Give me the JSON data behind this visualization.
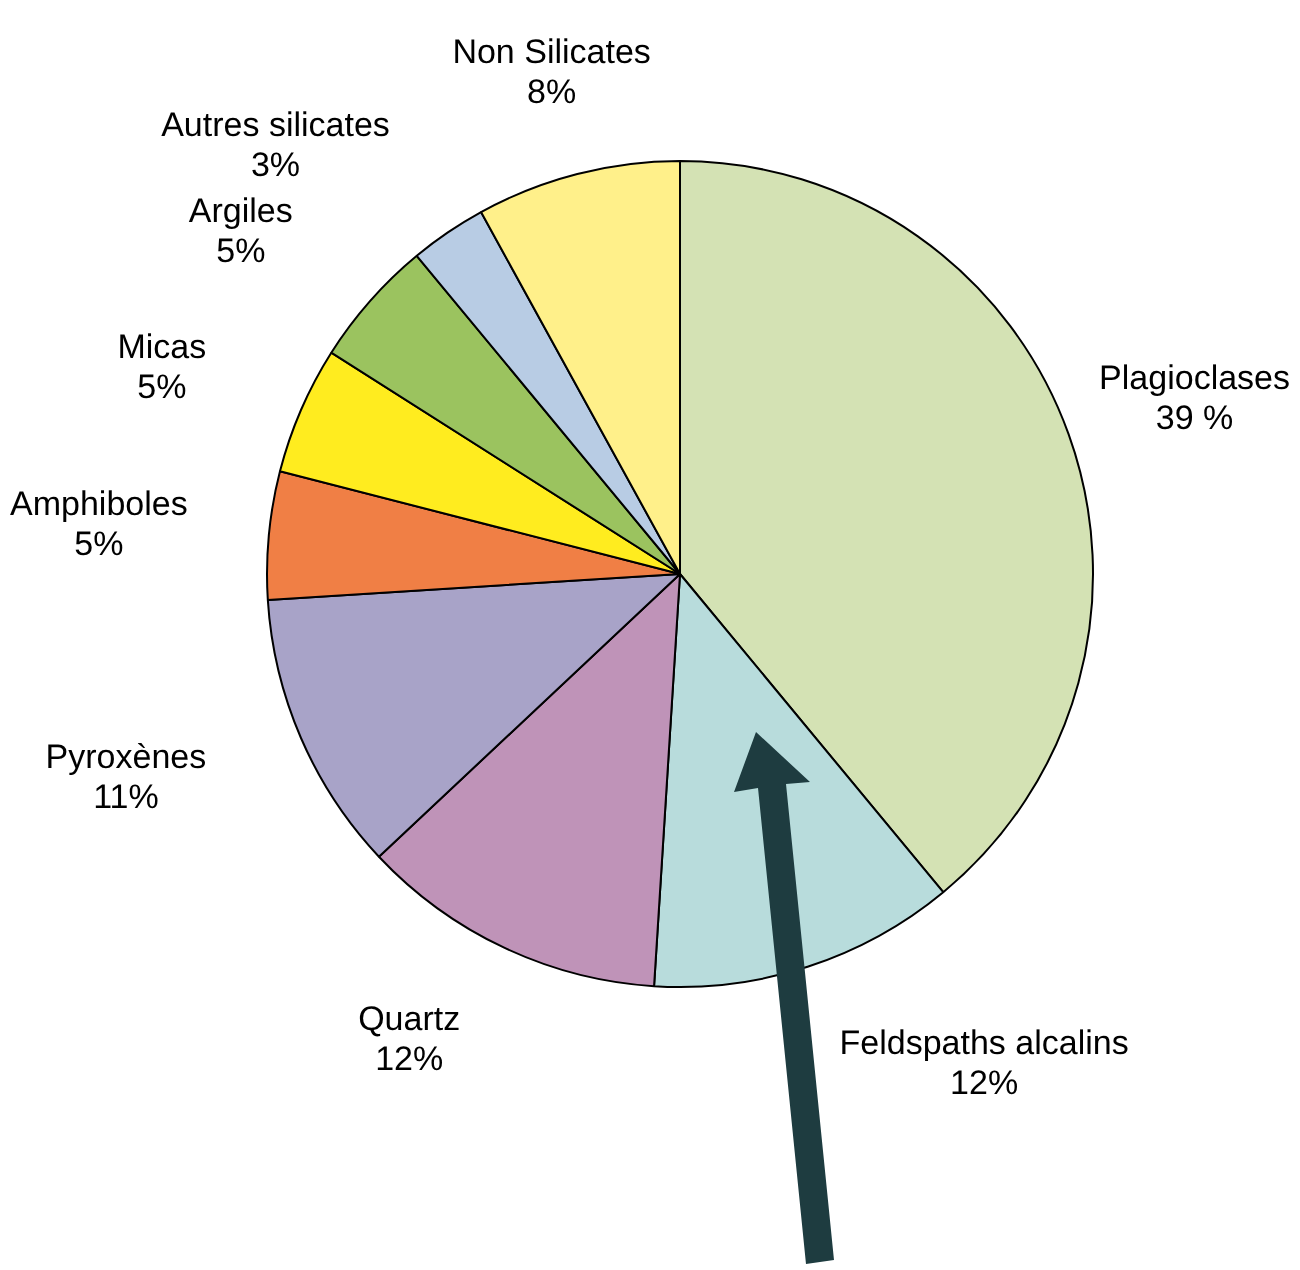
{
  "chart_data": {
    "type": "pie",
    "categories": [
      "Plagioclases",
      "Feldspaths alcalins",
      "Quartz",
      "Pyroxènes",
      "Amphiboles",
      "Micas",
      "Argiles",
      "Autres silicates",
      "Non Silicates"
    ],
    "values": [
      39,
      12,
      12,
      11,
      5,
      5,
      5,
      3,
      8
    ],
    "colors": [
      "#d4e2b4",
      "#b8dcdc",
      "#bf93b8",
      "#a8a3c8",
      "#f07f45",
      "#ffec1f",
      "#9bc35f",
      "#b8cce4",
      "#fff08a"
    ],
    "value_labels": [
      "39 %",
      "12%",
      "12%",
      "11%",
      "5%",
      "5%",
      "5%",
      "3%",
      "8%"
    ],
    "legend": false
  }
}
